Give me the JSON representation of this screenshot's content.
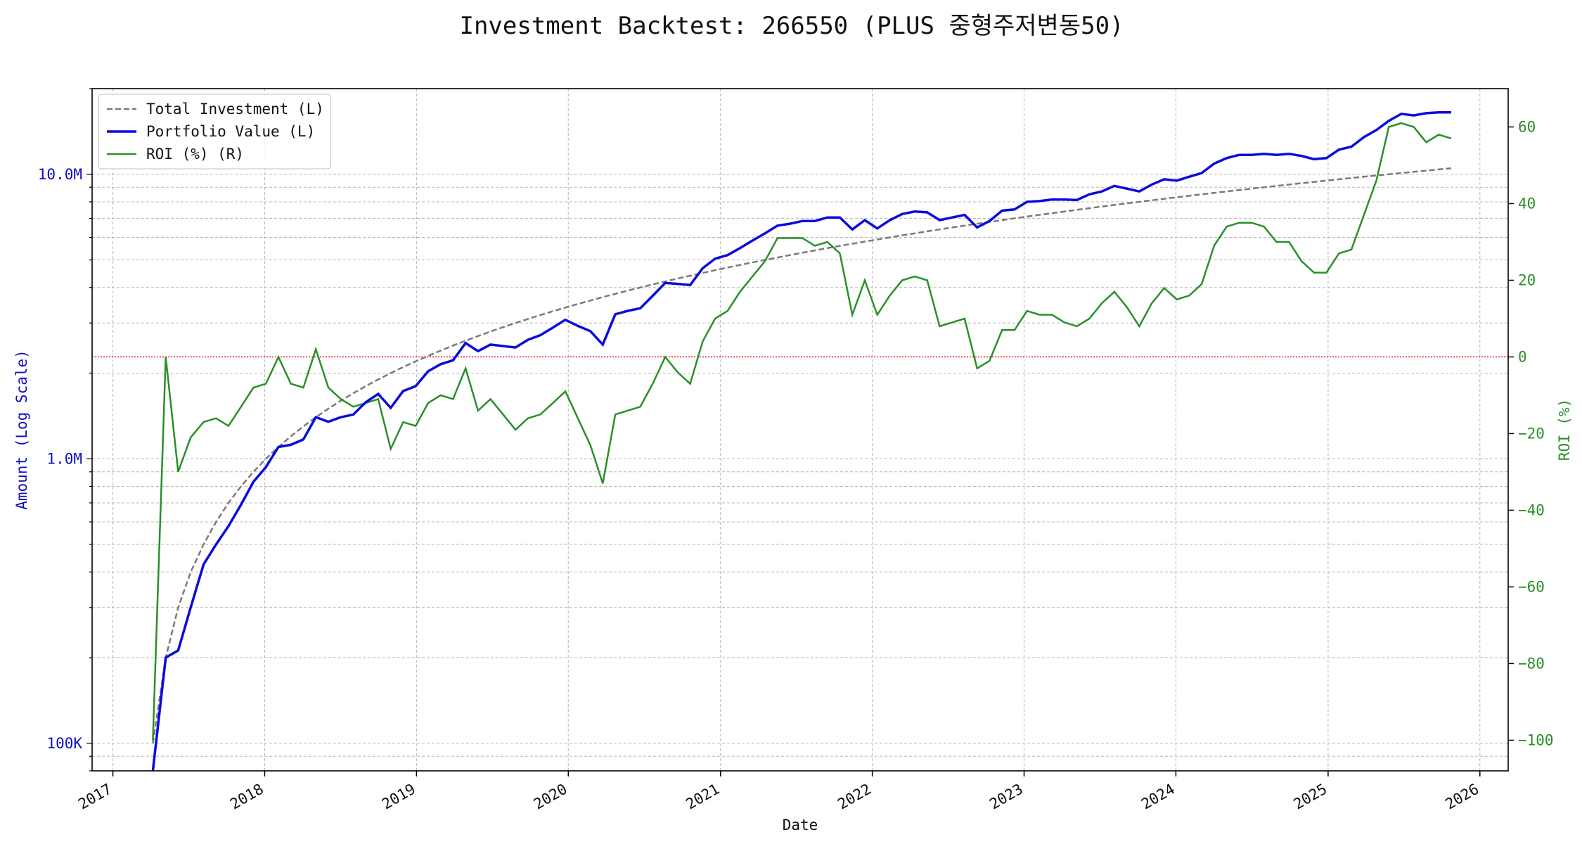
{
  "chart_data": {
    "type": "line",
    "title": "Investment Backtest: 266550 (PLUS 중형주저변동50)",
    "xlabel": "Date",
    "ylabel_left": "Amount (Log Scale)",
    "ylabel_right": "ROI (%)",
    "x_ticks": [
      "2017",
      "2018",
      "2019",
      "2020",
      "2021",
      "2022",
      "2023",
      "2024",
      "2025",
      "2026"
    ],
    "y_left_ticks": [
      "100K",
      "1.0M",
      "10.0M"
    ],
    "y_left_scale": "log",
    "y_left_range": [
      80000,
      20000000
    ],
    "y_right_ticks": [
      "−100",
      "−80",
      "−60",
      "−40",
      "−20",
      "0",
      "20",
      "40",
      "60"
    ],
    "y_right_range": [
      -108,
      70
    ],
    "x_range": [
      "2016-11-12",
      "2026-03-10"
    ],
    "grid": true,
    "legend_position": "top-left",
    "zero_line": 0,
    "colors": {
      "investment": "#7a7a7a",
      "portfolio": "#0a0ae0",
      "roi": "#2a8f2a",
      "zero": "#e00000",
      "left_axis": "#1010c0",
      "right_axis": "#2a8f2a"
    },
    "dates": [
      "2017-04-07",
      "2017-05-08",
      "2017-06-07",
      "2017-07-07",
      "2017-08-07",
      "2017-09-06",
      "2017-10-06",
      "2017-11-05",
      "2017-12-05",
      "2018-01-04",
      "2018-02-03",
      "2018-03-05",
      "2018-04-04",
      "2018-05-04",
      "2018-06-03",
      "2018-07-03",
      "2018-08-02",
      "2018-09-01",
      "2018-10-01",
      "2018-10-31",
      "2018-11-30",
      "2018-12-30",
      "2019-01-29",
      "2019-02-28",
      "2019-03-30",
      "2019-04-29",
      "2019-05-29",
      "2019-06-28",
      "2019-07-28",
      "2019-08-27",
      "2019-09-26",
      "2019-10-26",
      "2019-11-25",
      "2019-12-25",
      "2020-01-24",
      "2020-02-23",
      "2020-03-24",
      "2020-04-23",
      "2020-05-23",
      "2020-06-22",
      "2020-07-22",
      "2020-08-21",
      "2020-09-20",
      "2020-10-20",
      "2020-11-19",
      "2020-12-19",
      "2021-01-18",
      "2021-02-17",
      "2021-03-19",
      "2021-04-18",
      "2021-05-18",
      "2021-06-17",
      "2021-07-17",
      "2021-08-16",
      "2021-09-15",
      "2021-10-15",
      "2021-11-14",
      "2021-12-14",
      "2022-01-13",
      "2022-02-12",
      "2022-03-14",
      "2022-04-13",
      "2022-05-13",
      "2022-06-12",
      "2022-07-12",
      "2022-08-11",
      "2022-09-10",
      "2022-10-10",
      "2022-11-09",
      "2022-12-09",
      "2023-01-08",
      "2023-02-07",
      "2023-03-09",
      "2023-04-08",
      "2023-05-08",
      "2023-06-07",
      "2023-07-07",
      "2023-08-06",
      "2023-09-05",
      "2023-10-05",
      "2023-11-04",
      "2023-12-04",
      "2024-01-03",
      "2024-02-02",
      "2024-03-03",
      "2024-04-02",
      "2024-05-02",
      "2024-06-01",
      "2024-07-01",
      "2024-07-31",
      "2024-08-30",
      "2024-09-29",
      "2024-10-29",
      "2024-11-28",
      "2024-12-28",
      "2025-01-27",
      "2025-02-26",
      "2025-03-28",
      "2025-04-27",
      "2025-05-27",
      "2025-06-26",
      "2025-07-26",
      "2025-08-25",
      "2025-09-24",
      "2025-10-24"
    ],
    "series": [
      {
        "name": "Total Investment (L)",
        "style": "dashed",
        "axis": "left",
        "values": [
          100000,
          200000,
          300000,
          400000,
          500000,
          600000,
          700000,
          800000,
          900000,
          1000000,
          1100000,
          1200000,
          1300000,
          1400000,
          1500000,
          1600000,
          1700000,
          1800000,
          1900000,
          2000000,
          2100000,
          2200000,
          2300000,
          2400000,
          2500000,
          2600000,
          2700000,
          2800000,
          2900000,
          3000000,
          3100000,
          3200000,
          3300000,
          3400000,
          3500000,
          3600000,
          3700000,
          3800000,
          3900000,
          4000000,
          4100000,
          4200000,
          4300000,
          4400000,
          4500000,
          4600000,
          4700000,
          4800000,
          4900000,
          5000000,
          5100000,
          5200000,
          5300000,
          5400000,
          5500000,
          5600000,
          5700000,
          5800000,
          5900000,
          6000000,
          6100000,
          6200000,
          6300000,
          6400000,
          6500000,
          6600000,
          6700000,
          6800000,
          6900000,
          7000000,
          7100000,
          7200000,
          7300000,
          7400000,
          7500000,
          7600000,
          7700000,
          7800000,
          7900000,
          8000000,
          8100000,
          8200000,
          8300000,
          8400000,
          8500000,
          8600000,
          8700000,
          8800000,
          8900000,
          9000000,
          9100000,
          9200000,
          9300000,
          9400000,
          9500000,
          9600000,
          9700000,
          9800000,
          9900000,
          10000000,
          10100000,
          10200000,
          10300000,
          10400000,
          10500000
        ]
      },
      {
        "name": "Portfolio Value (L)",
        "style": "solid",
        "axis": "left",
        "values": [
          0,
          200000,
          212000,
          300000,
          425000,
          500000,
          580000,
          690000,
          830000,
          935000,
          1100000,
          1120000,
          1170000,
          1400000,
          1350000,
          1400000,
          1430000,
          1580000,
          1690000,
          1510000,
          1730000,
          1800000,
          2030000,
          2150000,
          2220000,
          2550000,
          2390000,
          2520000,
          2490000,
          2460000,
          2620000,
          2720000,
          2890000,
          3080000,
          2930000,
          2810000,
          2520000,
          3220000,
          3310000,
          3380000,
          3740000,
          4150000,
          4120000,
          4080000,
          4670000,
          5050000,
          5200000,
          5500000,
          5850000,
          6200000,
          6600000,
          6700000,
          6850000,
          6850000,
          7050000,
          7050000,
          6400000,
          6900000,
          6450000,
          6900000,
          7250000,
          7400000,
          7350000,
          6900000,
          7050000,
          7200000,
          6500000,
          6850000,
          7450000,
          7520000,
          8000000,
          8050000,
          8150000,
          8150000,
          8120000,
          8500000,
          8700000,
          9100000,
          8900000,
          8700000,
          9200000,
          9600000,
          9500000,
          9800000,
          10100000,
          10900000,
          11400000,
          11700000,
          11700000,
          11800000,
          11700000,
          11800000,
          11600000,
          11300000,
          11400000,
          12200000,
          12500000,
          13500000,
          14300000,
          15400000,
          16300000,
          16100000,
          16400000,
          16500000,
          16500000
        ]
      },
      {
        "name": "ROI (%) (R)",
        "style": "solid",
        "axis": "right",
        "values": [
          -100,
          0,
          -30,
          -21,
          -17,
          -16,
          -18,
          -13,
          -8,
          -7,
          0,
          -7,
          -8,
          2,
          -8,
          -11,
          -13,
          -12,
          -11,
          -24,
          -17,
          -18,
          -12,
          -10,
          -11,
          -3,
          -14,
          -11,
          -15,
          -19,
          -16,
          -15,
          -12,
          -9,
          -16,
          -23,
          -33,
          -15,
          -14,
          -13,
          -7,
          0,
          -4,
          -7,
          4,
          10,
          12,
          17,
          21,
          25,
          31,
          31,
          31,
          29,
          30,
          27,
          11,
          20,
          11,
          16,
          20,
          21,
          20,
          8,
          9,
          10,
          -3,
          -1,
          7,
          7,
          12,
          11,
          11,
          9,
          8,
          10,
          14,
          17,
          13,
          8,
          14,
          18,
          15,
          16,
          19,
          29,
          34,
          35,
          35,
          34,
          30,
          30,
          25,
          22,
          22,
          27,
          28,
          37,
          46,
          60,
          61,
          60,
          56,
          58,
          57
        ]
      }
    ]
  }
}
